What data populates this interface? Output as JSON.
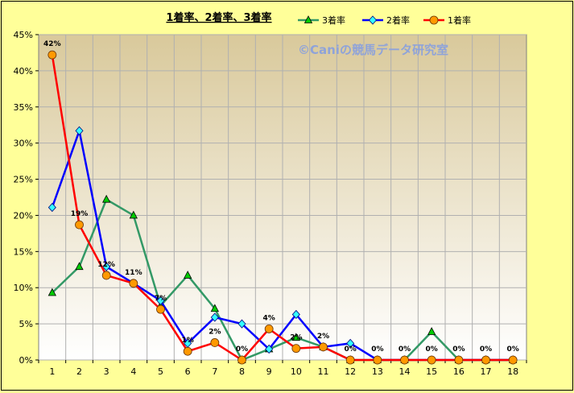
{
  "chart_data": {
    "type": "line",
    "title": "1着率、2着率、3着率",
    "watermark": "©Caniの競馬データ研究室",
    "x": [
      "1",
      "2",
      "3",
      "4",
      "5",
      "6",
      "7",
      "8",
      "9",
      "10",
      "11",
      "12",
      "13",
      "14",
      "15",
      "16",
      "17",
      "18"
    ],
    "ylim": [
      0,
      45
    ],
    "yticks": [
      "0%",
      "5%",
      "10%",
      "15%",
      "20%",
      "25%",
      "30%",
      "35%",
      "40%",
      "45%"
    ],
    "grid": true,
    "legend_position": "top-right",
    "series": [
      {
        "name": "3着率",
        "color": "#339966",
        "marker": "triangle",
        "values": [
          9.3,
          12.9,
          22.2,
          20.0,
          7.5,
          11.7,
          7.1,
          0,
          1.5,
          3.1,
          1.8,
          0,
          0,
          0,
          3.9,
          0,
          0,
          0
        ]
      },
      {
        "name": "2着率",
        "color": "#0000ff",
        "marker": "diamond",
        "values": [
          21.1,
          31.7,
          12.9,
          10.6,
          8.2,
          2.3,
          5.9,
          5.0,
          1.5,
          6.3,
          1.8,
          2.3,
          0,
          0,
          0,
          0,
          0,
          0
        ]
      },
      {
        "name": "1着率",
        "color": "#ff0000",
        "marker": "circle",
        "values": [
          42.2,
          18.7,
          11.7,
          10.6,
          7.0,
          1.2,
          2.4,
          0,
          4.3,
          1.6,
          1.8,
          0,
          0,
          0,
          0,
          0,
          0,
          0
        ],
        "labels": [
          "42%",
          "19%",
          "12%",
          "11%",
          "7%",
          "1%",
          "2%",
          "0%",
          "4%",
          "2%",
          "2%",
          "0%",
          "0%",
          "0%",
          "0%",
          "0%",
          "0%",
          "0%"
        ]
      }
    ]
  }
}
